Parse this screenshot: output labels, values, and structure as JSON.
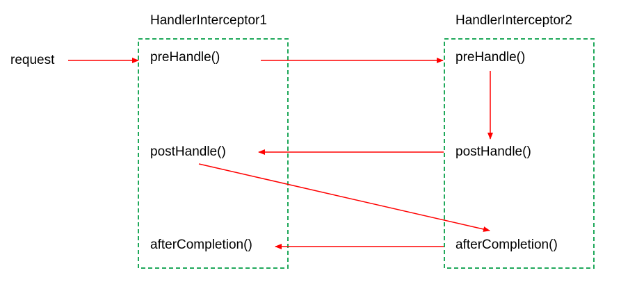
{
  "request_label": "request",
  "interceptor1": {
    "title": "HandlerInterceptor1",
    "pre": "preHandle()",
    "post": "postHandle()",
    "after": "afterCompletion()"
  },
  "interceptor2": {
    "title": "HandlerInterceptor2",
    "pre": "preHandle()",
    "post": "postHandle()",
    "after": "afterCompletion()"
  },
  "colors": {
    "box_border": "#1fa85a",
    "arrow": "#ff0000",
    "text": "#000000"
  }
}
